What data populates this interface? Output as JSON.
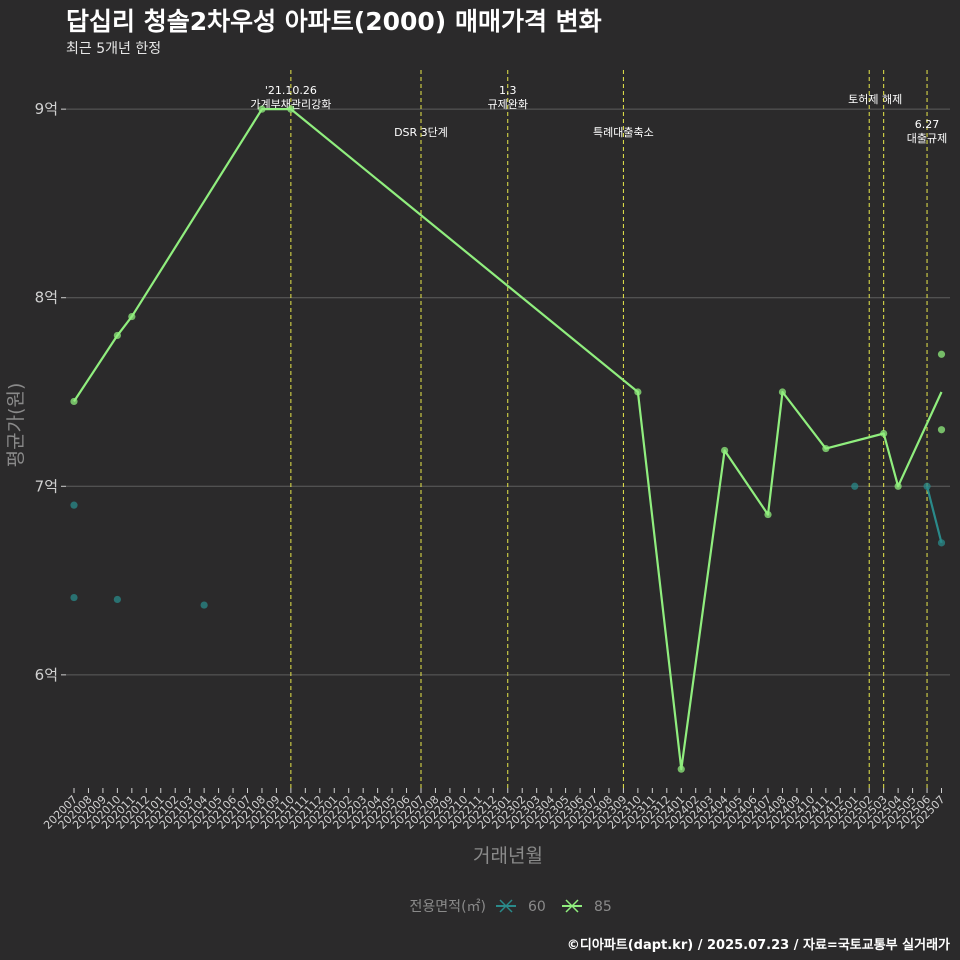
{
  "title": "답십리 청솔2차우성 아파트(2000) 매매가격 변화",
  "subtitle": "최근 5개년 한정",
  "caption": "©디아파트(dapt.kr) / 2025.07.23 / 자료=국토교통부 실거래가",
  "colors": {
    "background": "#2b2a2b",
    "grid": "#5e5e5e",
    "event_line": "#e8e84a",
    "series_60": "#2a8a8a",
    "series_85": "#90ee7e",
    "axis_text": "#d0d0d0",
    "axis_title": "#8a8a8a"
  },
  "chart_data": {
    "type": "line",
    "xlabel": "거래년월",
    "ylabel": "평균가(원)",
    "categories": [
      "202007",
      "202008",
      "202009",
      "202010",
      "202011",
      "202012",
      "202101",
      "202102",
      "202103",
      "202104",
      "202105",
      "202106",
      "202107",
      "202108",
      "202109",
      "202110",
      "202111",
      "202112",
      "202201",
      "202202",
      "202203",
      "202204",
      "202205",
      "202206",
      "202207",
      "202208",
      "202209",
      "202210",
      "202211",
      "202212",
      "202301",
      "202302",
      "202303",
      "202304",
      "202305",
      "202306",
      "202307",
      "202308",
      "202309",
      "202310",
      "202311",
      "202312",
      "202401",
      "202402",
      "202403",
      "202404",
      "202405",
      "202406",
      "202407",
      "202408",
      "202409",
      "202410",
      "202411",
      "202412",
      "202501",
      "202502",
      "202503",
      "202504",
      "202505",
      "202506",
      "202507"
    ],
    "y_ticks": [
      {
        "value": 60000,
        "label": "6억"
      },
      {
        "value": 70000,
        "label": "7억"
      },
      {
        "value": 80000,
        "label": "8억"
      },
      {
        "value": 90000,
        "label": "9억"
      }
    ],
    "ylim": [
      54000,
      92500
    ],
    "y_unit": "만원",
    "grid": true,
    "legend": {
      "title": "전용면적(㎡)",
      "position": "bottom",
      "entries": [
        {
          "label": "60",
          "color": "#2a8a8a"
        },
        {
          "label": "85",
          "color": "#90ee7e"
        }
      ]
    },
    "series": [
      {
        "name": "60",
        "color": "#2a8a8a",
        "points": [
          {
            "x": "202007",
            "y": 69000
          },
          {
            "x": "202007",
            "y": 64100
          },
          {
            "x": "202010",
            "y": 64000
          },
          {
            "x": "202104",
            "y": 63700
          },
          {
            "x": "202501",
            "y": 70000
          },
          {
            "x": "202506",
            "y": 70000
          },
          {
            "x": "202507",
            "y": 67000
          }
        ],
        "line": [
          {
            "x": "202506",
            "y": 70000
          },
          {
            "x": "202507",
            "y": 67000
          }
        ]
      },
      {
        "name": "85",
        "color": "#90ee7e",
        "points": [
          {
            "x": "202007",
            "y": 74500
          },
          {
            "x": "202010",
            "y": 78000
          },
          {
            "x": "202011",
            "y": 79000
          },
          {
            "x": "202108",
            "y": 90000
          },
          {
            "x": "202110",
            "y": 90000
          },
          {
            "x": "202310",
            "y": 75000
          },
          {
            "x": "202401",
            "y": 55000
          },
          {
            "x": "202404",
            "y": 71900
          },
          {
            "x": "202407",
            "y": 68500
          },
          {
            "x": "202408",
            "y": 75000
          },
          {
            "x": "202411",
            "y": 72000
          },
          {
            "x": "202503",
            "y": 72800
          },
          {
            "x": "202504",
            "y": 70000
          },
          {
            "x": "202507",
            "y": 77000
          },
          {
            "x": "202507",
            "y": 73000
          }
        ],
        "line": [
          {
            "x": "202007",
            "y": 74500
          },
          {
            "x": "202010",
            "y": 78000
          },
          {
            "x": "202011",
            "y": 79000
          },
          {
            "x": "202108",
            "y": 90000
          },
          {
            "x": "202110",
            "y": 90000
          },
          {
            "x": "202310",
            "y": 75000
          },
          {
            "x": "202401",
            "y": 55000
          },
          {
            "x": "202404",
            "y": 71900
          },
          {
            "x": "202407",
            "y": 68500
          },
          {
            "x": "202408",
            "y": 75000
          },
          {
            "x": "202411",
            "y": 72000
          },
          {
            "x": "202503",
            "y": 72800
          },
          {
            "x": "202504",
            "y": 70000
          },
          {
            "x": "202507",
            "y": 75000
          }
        ]
      }
    ],
    "events": [
      {
        "x": "202110",
        "lines": [
          "'21.10.26",
          "가계부채관리강화"
        ],
        "level": "top"
      },
      {
        "x": "202207",
        "lines": [
          "DSR 3단계"
        ],
        "level": "low"
      },
      {
        "x": "202301",
        "lines": [
          "1.3",
          "규제완화"
        ],
        "level": "top"
      },
      {
        "x": "202309",
        "lines": [
          "특례대출축소"
        ],
        "level": "low"
      },
      {
        "x": "202502",
        "lines": [
          "토허제 해제"
        ],
        "level": "mid"
      },
      {
        "x": "202503",
        "lines": [],
        "level": "mid"
      },
      {
        "x": "202506",
        "lines": [
          "6.27",
          "대출규제"
        ],
        "level": "right"
      }
    ]
  }
}
